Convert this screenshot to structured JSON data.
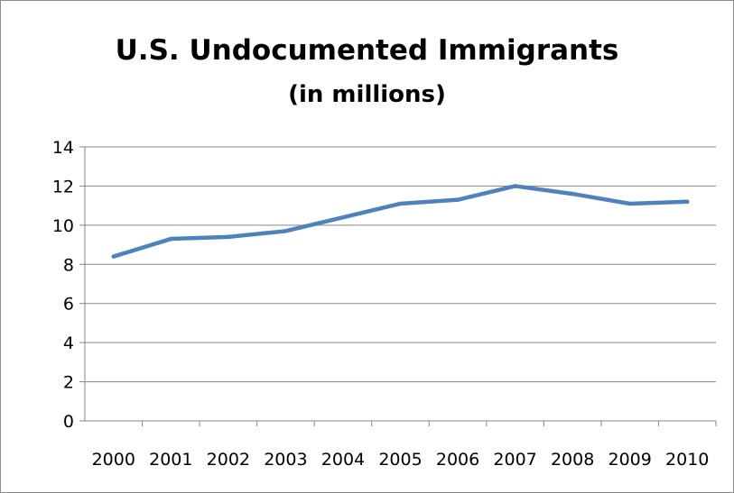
{
  "chart_data": {
    "type": "line",
    "title": "U.S. Undocumented Immigrants",
    "subtitle": "(in millions)",
    "xlabel": "",
    "ylabel": "",
    "x": [
      "2000",
      "2001",
      "2002",
      "2003",
      "2004",
      "2005",
      "2006",
      "2007",
      "2008",
      "2009",
      "2010"
    ],
    "series": [
      {
        "values": [
          8.4,
          9.3,
          9.4,
          9.7,
          10.4,
          11.1,
          11.3,
          12.0,
          11.6,
          11.1,
          11.2
        ]
      }
    ],
    "ylim": [
      0,
      14
    ],
    "yticks": [
      "0",
      "2",
      "4",
      "6",
      "8",
      "10",
      "12",
      "14"
    ],
    "grid": true,
    "legend": "none",
    "line_color": "#4f81bd",
    "grid_color": "#868686"
  }
}
